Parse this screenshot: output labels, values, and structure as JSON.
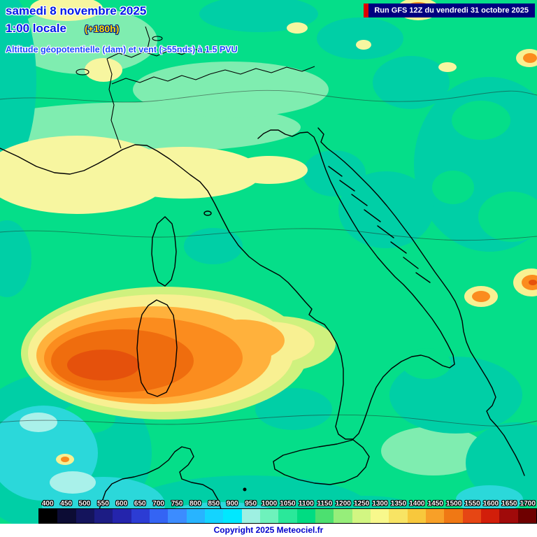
{
  "header": {
    "date_line": "samedi 8 novembre 2025",
    "time_line": "1:00 locale",
    "forecast_offset": "(+180h)",
    "subtitle": "Altitude géopotentielle (dam) et vent (>55nds) à 1.5 PVU",
    "run_info": "Run GFS 12Z du vendredi 31 octobre 2025"
  },
  "footer": {
    "copyright": "Copyright 2025 Meteociel.fr"
  },
  "scale": {
    "labels": [
      "400",
      "450",
      "500",
      "550",
      "600",
      "650",
      "700",
      "750",
      "800",
      "850",
      "900",
      "950",
      "1000",
      "1050",
      "1100",
      "1150",
      "1200",
      "1250",
      "1300",
      "1350",
      "1400",
      "1450",
      "1500",
      "1550",
      "1600",
      "1650",
      "1700"
    ],
    "colors": [
      "#000000",
      "#0c0c34",
      "#14145c",
      "#1c1c84",
      "#2424ac",
      "#2c3cd4",
      "#3464f4",
      "#3c8cff",
      "#28b4ff",
      "#14d4ff",
      "#00e8ff",
      "#9ef0e2",
      "#6ef2bc",
      "#2ae89a",
      "#00dc82",
      "#4ce070",
      "#96ee7a",
      "#d2f682",
      "#f8f88c",
      "#f8e464",
      "#f8c83c",
      "#f8a028",
      "#f07814",
      "#e64614",
      "#d21e0a",
      "#a00a0a",
      "#6e0000"
    ]
  },
  "colors": {
    "title_blue": "#0018e8",
    "offset_yellow": "#ffd800",
    "subtitle_blue": "#1d49ff",
    "run_box_bg": "#000080",
    "run_box_accent": "#dd0000",
    "copyright_blue": "#0000cc",
    "map_green": "#05de89",
    "map_pale_green": "#7fedb0",
    "map_teal": "#00cfa6",
    "map_cyan": "#2bd8da",
    "map_pale_cyan": "#a9f1ea",
    "map_yellow": "#f7f6a0",
    "map_orange": "#fb8c1e",
    "map_orange_deep": "#ef6d0e"
  }
}
